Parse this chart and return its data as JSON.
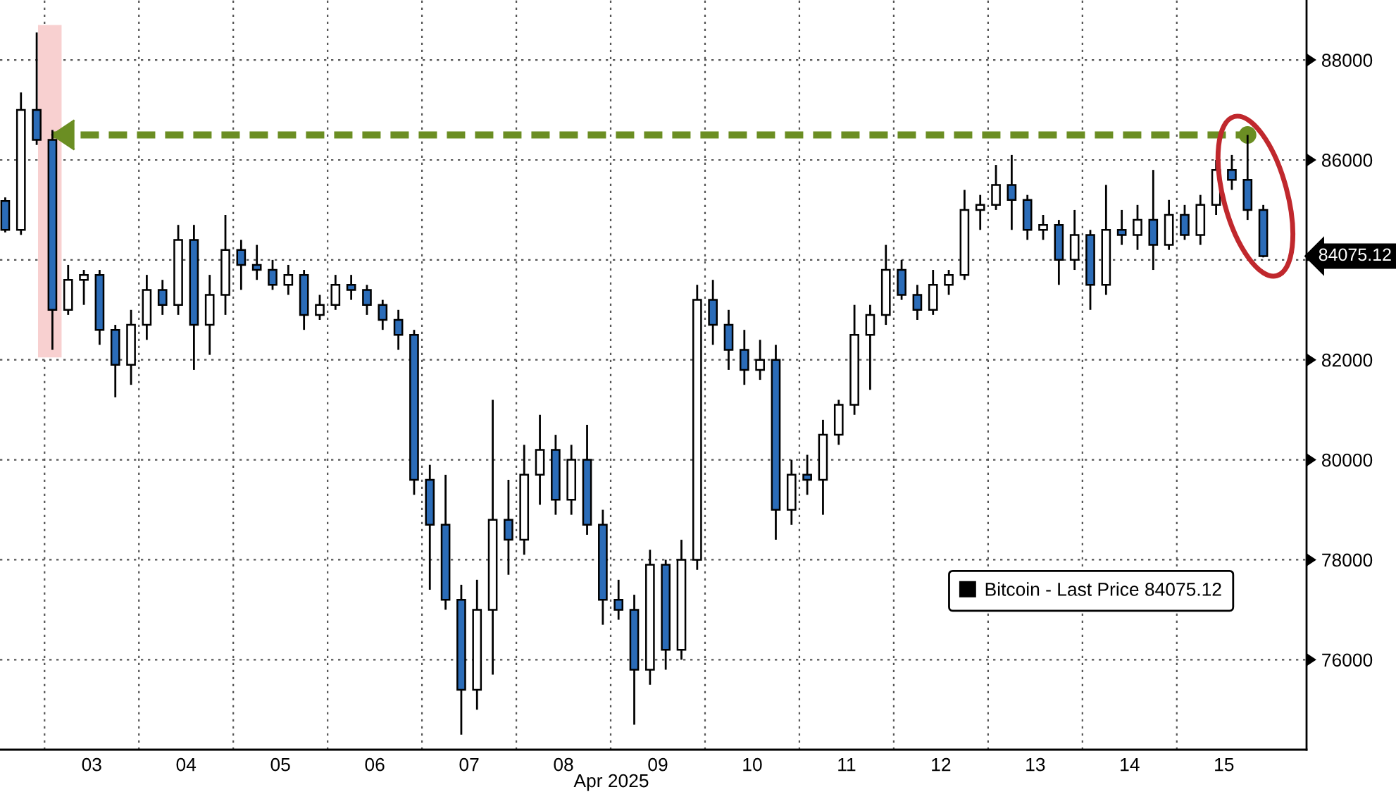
{
  "chart_data": {
    "type": "candlestick",
    "xlabel": "Apr 2025",
    "x": [
      "2025-04-02T14:00",
      "2025-04-02T18:00",
      "2025-04-02T22:00",
      "2025-04-03T02:00",
      "2025-04-03T06:00",
      "2025-04-03T10:00",
      "2025-04-03T14:00",
      "2025-04-03T18:00",
      "2025-04-03T22:00",
      "2025-04-04T02:00",
      "2025-04-04T06:00",
      "2025-04-04T10:00",
      "2025-04-04T14:00",
      "2025-04-04T18:00",
      "2025-04-04T22:00",
      "2025-04-05T02:00",
      "2025-04-05T06:00",
      "2025-04-05T10:00",
      "2025-04-05T14:00",
      "2025-04-05T18:00",
      "2025-04-05T22:00",
      "2025-04-06T02:00",
      "2025-04-06T06:00",
      "2025-04-06T10:00",
      "2025-04-06T14:00",
      "2025-04-06T18:00",
      "2025-04-06T22:00",
      "2025-04-07T02:00",
      "2025-04-07T06:00",
      "2025-04-07T10:00",
      "2025-04-07T14:00",
      "2025-04-07T18:00",
      "2025-04-07T22:00",
      "2025-04-08T02:00",
      "2025-04-08T06:00",
      "2025-04-08T10:00",
      "2025-04-08T14:00",
      "2025-04-08T18:00",
      "2025-04-08T22:00",
      "2025-04-09T02:00",
      "2025-04-09T06:00",
      "2025-04-09T10:00",
      "2025-04-09T14:00",
      "2025-04-09T18:00",
      "2025-04-09T22:00",
      "2025-04-10T02:00",
      "2025-04-10T06:00",
      "2025-04-10T10:00",
      "2025-04-10T14:00",
      "2025-04-10T18:00",
      "2025-04-10T22:00",
      "2025-04-11T02:00",
      "2025-04-11T06:00",
      "2025-04-11T10:00",
      "2025-04-11T14:00",
      "2025-04-11T18:00",
      "2025-04-11T22:00",
      "2025-04-12T02:00",
      "2025-04-12T06:00",
      "2025-04-12T10:00",
      "2025-04-12T14:00",
      "2025-04-12T18:00",
      "2025-04-12T22:00",
      "2025-04-13T02:00",
      "2025-04-13T06:00",
      "2025-04-13T10:00",
      "2025-04-13T14:00",
      "2025-04-13T18:00",
      "2025-04-13T22:00",
      "2025-04-14T02:00",
      "2025-04-14T06:00",
      "2025-04-14T10:00",
      "2025-04-14T14:00",
      "2025-04-14T18:00",
      "2025-04-14T22:00",
      "2025-04-15T02:00",
      "2025-04-15T06:00",
      "2025-04-15T10:00",
      "2025-04-15T14:00",
      "2025-04-15T18:00",
      "2025-04-15T22:00"
    ],
    "series": [
      {
        "name": "Bitcoin - Last Price 84075.12",
        "color": "#000000",
        "colors": [
          "#2b6cb8",
          "#ffffff",
          "#2b6cb8",
          "#2b6cb8",
          "#ffffff",
          "#ffffff",
          "#2b6cb8",
          "#2b6cb8",
          "#ffffff",
          "#ffffff",
          "#2b6cb8",
          "#ffffff",
          "#2b6cb8",
          "#ffffff",
          "#ffffff",
          "#2b6cb8",
          "#2b6cb8",
          "#2b6cb8",
          "#ffffff",
          "#2b6cb8",
          "#ffffff",
          "#ffffff",
          "#2b6cb8",
          "#2b6cb8",
          "#2b6cb8",
          "#2b6cb8",
          "#2b6cb8",
          "#2b6cb8",
          "#2b6cb8",
          "#2b6cb8",
          "#ffffff",
          "#ffffff",
          "#2b6cb8",
          "#ffffff",
          "#ffffff",
          "#2b6cb8",
          "#ffffff",
          "#2b6cb8",
          "#2b6cb8",
          "#2b6cb8",
          "#2b6cb8",
          "#ffffff",
          "#2b6cb8",
          "#ffffff",
          "#ffffff",
          "#2b6cb8",
          "#2b6cb8",
          "#2b6cb8",
          "#ffffff",
          "#2b6cb8",
          "#ffffff",
          "#2b6cb8",
          "#ffffff",
          "#ffffff",
          "#ffffff",
          "#ffffff",
          "#ffffff",
          "#2b6cb8",
          "#2b6cb8",
          "#ffffff",
          "#ffffff",
          "#ffffff",
          "#ffffff",
          "#ffffff",
          "#2b6cb8",
          "#2b6cb8",
          "#ffffff",
          "#2b6cb8",
          "#ffffff",
          "#2b6cb8",
          "#ffffff",
          "#2b6cb8",
          "#ffffff",
          "#2b6cb8",
          "#ffffff",
          "#2b6cb8",
          "#ffffff",
          "#ffffff",
          "#2b6cb8",
          "#2b6cb8",
          "#2b6cb8"
        ],
        "ohlc": [
          [
            85180,
            85250,
            84550,
            84600
          ],
          [
            84600,
            87350,
            84500,
            87000
          ],
          [
            87000,
            88550,
            86300,
            86400
          ],
          [
            86400,
            86600,
            82200,
            83000
          ],
          [
            83000,
            83900,
            82900,
            83600
          ],
          [
            83600,
            83800,
            83100,
            83700
          ],
          [
            83700,
            83800,
            82300,
            82600
          ],
          [
            82600,
            82700,
            81250,
            81900
          ],
          [
            81900,
            83000,
            81500,
            82700
          ],
          [
            82700,
            83700,
            82400,
            83400
          ],
          [
            83400,
            83600,
            82900,
            83100
          ],
          [
            83100,
            84700,
            82900,
            84400
          ],
          [
            84400,
            84700,
            81800,
            82700
          ],
          [
            82700,
            83700,
            82100,
            83300
          ],
          [
            83300,
            84900,
            82900,
            84200
          ],
          [
            84200,
            84400,
            83400,
            83900
          ],
          [
            83900,
            84300,
            83600,
            83800
          ],
          [
            83800,
            84000,
            83400,
            83500
          ],
          [
            83500,
            83900,
            83300,
            83700
          ],
          [
            83700,
            83800,
            82600,
            82900
          ],
          [
            82900,
            83300,
            82800,
            83100
          ],
          [
            83100,
            83700,
            83000,
            83500
          ],
          [
            83500,
            83700,
            83200,
            83400
          ],
          [
            83400,
            83500,
            82900,
            83100
          ],
          [
            83100,
            83200,
            82600,
            82800
          ],
          [
            82800,
            83000,
            82200,
            82500
          ],
          [
            82500,
            82600,
            79300,
            79600
          ],
          [
            79600,
            79900,
            77400,
            78700
          ],
          [
            78700,
            79700,
            77000,
            77200
          ],
          [
            77200,
            77500,
            74500,
            75400
          ],
          [
            75400,
            77600,
            75000,
            77000
          ],
          [
            77000,
            81200,
            75700,
            78800
          ],
          [
            78800,
            79600,
            77700,
            78400
          ],
          [
            78400,
            80300,
            78100,
            79700
          ],
          [
            79700,
            80900,
            79100,
            80200
          ],
          [
            80200,
            80500,
            78900,
            79200
          ],
          [
            79200,
            80300,
            78900,
            80000
          ],
          [
            80000,
            80700,
            78500,
            78700
          ],
          [
            78700,
            79000,
            76700,
            77200
          ],
          [
            77200,
            77600,
            76800,
            77000
          ],
          [
            77000,
            77300,
            74700,
            75800
          ],
          [
            75800,
            78200,
            75500,
            77900
          ],
          [
            77900,
            78000,
            75800,
            76200
          ],
          [
            76200,
            78400,
            76000,
            78000
          ],
          [
            78000,
            83500,
            77800,
            83200
          ],
          [
            83200,
            83600,
            82300,
            82700
          ],
          [
            82700,
            83000,
            81800,
            82200
          ],
          [
            82200,
            82600,
            81500,
            81800
          ],
          [
            81800,
            82400,
            81600,
            82000
          ],
          [
            82000,
            82300,
            78400,
            79000
          ],
          [
            79000,
            80000,
            78700,
            79700
          ],
          [
            79700,
            80100,
            79300,
            79600
          ],
          [
            79600,
            80800,
            78900,
            80500
          ],
          [
            80500,
            81200,
            80300,
            81100
          ],
          [
            81100,
            83100,
            80900,
            82500
          ],
          [
            82500,
            83100,
            81400,
            82900
          ],
          [
            82900,
            84300,
            82700,
            83800
          ],
          [
            83800,
            84000,
            83200,
            83300
          ],
          [
            83300,
            83500,
            82800,
            83000
          ],
          [
            83000,
            83800,
            82900,
            83500
          ],
          [
            83500,
            83800,
            83300,
            83700
          ],
          [
            83700,
            85400,
            83600,
            85000
          ],
          [
            85000,
            85300,
            84600,
            85100
          ],
          [
            85100,
            85900,
            85000,
            85500
          ],
          [
            85500,
            86100,
            84600,
            85200
          ],
          [
            85200,
            85300,
            84400,
            84600
          ],
          [
            84600,
            84900,
            84400,
            84700
          ],
          [
            84700,
            84800,
            83500,
            84000
          ],
          [
            84000,
            85000,
            83800,
            84500
          ],
          [
            84500,
            84600,
            83000,
            83500
          ],
          [
            83500,
            85500,
            83300,
            84600
          ],
          [
            84600,
            85000,
            84300,
            84500
          ],
          [
            84500,
            85100,
            84200,
            84800
          ],
          [
            84800,
            85800,
            83800,
            84300
          ],
          [
            84300,
            85200,
            84200,
            84900
          ],
          [
            84900,
            85100,
            84400,
            84500
          ],
          [
            84500,
            85300,
            84300,
            85100
          ],
          [
            85100,
            86000,
            84900,
            85800
          ],
          [
            85800,
            86100,
            85400,
            85600
          ],
          [
            85600,
            86500,
            84800,
            85000
          ],
          [
            85000,
            85100,
            84050,
            84075.12
          ]
        ]
      }
    ],
    "xlim": [
      "2025-04-02T12:40",
      "2025-04-16T09:00"
    ],
    "xticks": [
      {
        "value": "2025-04-03T00:00",
        "label": null
      },
      {
        "value": "2025-04-03T12:00",
        "label": "03"
      },
      {
        "value": "2025-04-04T00:00",
        "label": null
      },
      {
        "value": "2025-04-04T12:00",
        "label": "04"
      },
      {
        "value": "2025-04-05T00:00",
        "label": null
      },
      {
        "value": "2025-04-05T12:00",
        "label": "05"
      },
      {
        "value": "2025-04-06T00:00",
        "label": null
      },
      {
        "value": "2025-04-06T12:00",
        "label": "06"
      },
      {
        "value": "2025-04-07T00:00",
        "label": null
      },
      {
        "value": "2025-04-07T12:00",
        "label": "07"
      },
      {
        "value": "2025-04-08T00:00",
        "label": null
      },
      {
        "value": "2025-04-08T12:00",
        "label": "08"
      },
      {
        "value": "2025-04-09T00:00",
        "label": null
      },
      {
        "value": "2025-04-09T12:00",
        "label": "09"
      },
      {
        "value": "2025-04-10T00:00",
        "label": null
      },
      {
        "value": "2025-04-10T12:00",
        "label": "10"
      },
      {
        "value": "2025-04-11T00:00",
        "label": null
      },
      {
        "value": "2025-04-11T12:00",
        "label": "11"
      },
      {
        "value": "2025-04-12T00:00",
        "label": null
      },
      {
        "value": "2025-04-12T12:00",
        "label": "12"
      },
      {
        "value": "2025-04-13T00:00",
        "label": null
      },
      {
        "value": "2025-04-13T12:00",
        "label": "13"
      },
      {
        "value": "2025-04-14T00:00",
        "label": null
      },
      {
        "value": "2025-04-14T12:00",
        "label": "14"
      },
      {
        "value": "2025-04-15T00:00",
        "label": null
      },
      {
        "value": "2025-04-15T12:00",
        "label": "15"
      }
    ],
    "ylim": [
      74200,
      89200
    ],
    "yticks": [
      76000,
      78000,
      80000,
      82000,
      {
        "value": 84000,
        "label": null
      },
      86000,
      88000
    ],
    "grid": true,
    "legend": "bottom right",
    "bands": [
      {
        "axis": "x",
        "from": "2025-04-02T22:20",
        "to": "2025-04-03T04:20",
        "color": "#f8d0d0"
      }
    ],
    "ref_lines": [
      {
        "axis": "y",
        "value": 86500,
        "color": "#6b8e23",
        "line_style": "dashed"
      }
    ],
    "annotations": [
      "84075.12"
    ]
  }
}
